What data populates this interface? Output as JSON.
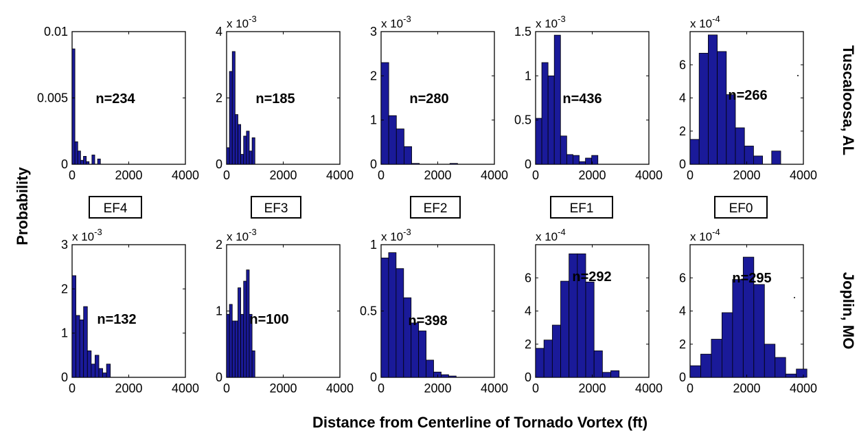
{
  "figure": {
    "ylabel": "Probability",
    "xlabel": "Distance from Centerline of Tornado Vortex (ft)",
    "row_labels": [
      "Tuscaloosa, AL",
      "Joplin, MO"
    ],
    "ef_labels": [
      "EF4",
      "EF3",
      "EF2",
      "EF1",
      "EF0"
    ],
    "bar_color": "#1a1a99",
    "bar_edge": "#000000"
  },
  "chart_data": [
    {
      "type": "bar",
      "row": 0,
      "col": 0,
      "annotation": "n=234",
      "scale_prefix": "",
      "scale_exp": "",
      "xlim": [
        0,
        4000
      ],
      "ylim": [
        0,
        0.01
      ],
      "yticks": [
        0,
        0.005,
        0.01
      ],
      "ytick_labels": [
        "0",
        "0.005",
        "0.01"
      ],
      "xticks": [
        0,
        2000,
        4000
      ],
      "xtick_labels": [
        "0",
        "2000",
        "4000"
      ],
      "bin_width": 100,
      "bin_start": 0,
      "values": [
        0.0087,
        0.0017,
        0.001,
        0.0003,
        0.0006,
        0.0002,
        0,
        0.0007,
        0,
        0.0004
      ]
    },
    {
      "type": "bar",
      "row": 0,
      "col": 1,
      "annotation": "n=185",
      "scale_prefix": "x 10",
      "scale_exp": "-3",
      "xlim": [
        0,
        4000
      ],
      "ylim": [
        0,
        4
      ],
      "yticks": [
        0,
        2,
        4
      ],
      "ytick_labels": [
        "0",
        "2",
        "4"
      ],
      "xticks": [
        0,
        2000,
        4000
      ],
      "xtick_labels": [
        "0",
        "2000",
        "4000"
      ],
      "bin_width": 100,
      "bin_start": 0,
      "values": [
        0.5,
        2.8,
        3.4,
        1.5,
        1.2,
        0.3,
        0.85,
        1.0,
        0.4,
        0.8
      ]
    },
    {
      "type": "bar",
      "row": 0,
      "col": 2,
      "annotation": "n=280",
      "scale_prefix": "x 10",
      "scale_exp": "-3",
      "xlim": [
        0,
        4000
      ],
      "ylim": [
        0,
        3
      ],
      "yticks": [
        0,
        1,
        2,
        3
      ],
      "ytick_labels": [
        "0",
        "1",
        "2",
        "3"
      ],
      "xticks": [
        0,
        2000,
        4000
      ],
      "xtick_labels": [
        "0",
        "2000",
        "4000"
      ],
      "bin_width": 270,
      "bin_start": 0,
      "values": [
        2.3,
        1.1,
        0.8,
        0.4,
        0.02,
        0,
        0,
        0,
        0,
        0.02
      ]
    },
    {
      "type": "bar",
      "row": 0,
      "col": 3,
      "annotation": "n=436",
      "scale_prefix": "x 10",
      "scale_exp": "-3",
      "xlim": [
        0,
        4000
      ],
      "ylim": [
        0,
        1.5
      ],
      "yticks": [
        0,
        0.5,
        1,
        1.5
      ],
      "ytick_labels": [
        "0",
        "0.5",
        "1",
        "1.5"
      ],
      "xticks": [
        0,
        2000,
        4000
      ],
      "xtick_labels": [
        "0",
        "2000",
        "4000"
      ],
      "bin_width": 220,
      "bin_start": 0,
      "values": [
        0.52,
        1.15,
        1.0,
        1.46,
        0.32,
        0.11,
        0.1,
        0.03,
        0.07,
        0.1
      ]
    },
    {
      "type": "bar",
      "row": 0,
      "col": 4,
      "annotation": "n=266",
      "scale_prefix": "x 10",
      "scale_exp": "-4",
      "xlim": [
        0,
        4000
      ],
      "ylim": [
        0,
        8
      ],
      "yticks": [
        0,
        2,
        4,
        6
      ],
      "ytick_labels": [
        "0",
        "2",
        "4",
        "6"
      ],
      "xticks": [
        0,
        2000,
        4000
      ],
      "xtick_labels": [
        "0",
        "2000",
        "4000"
      ],
      "bin_width": 320,
      "bin_start": 0,
      "values": [
        1.5,
        6.7,
        7.8,
        6.8,
        4.2,
        2.2,
        1.1,
        0.5,
        0,
        0.8
      ]
    },
    {
      "type": "bar",
      "row": 1,
      "col": 0,
      "annotation": "n=132",
      "scale_prefix": "x 10",
      "scale_exp": "-3",
      "xlim": [
        0,
        4000
      ],
      "ylim": [
        0,
        3
      ],
      "yticks": [
        0,
        1,
        2,
        3
      ],
      "ytick_labels": [
        "0",
        "1",
        "2",
        "3"
      ],
      "xticks": [
        0,
        2000,
        4000
      ],
      "xtick_labels": [
        "0",
        "2000",
        "4000"
      ],
      "bin_width": 135,
      "bin_start": 0,
      "values": [
        2.3,
        1.4,
        1.3,
        1.6,
        0.6,
        0.3,
        0.5,
        0.2,
        0.1,
        0.3
      ]
    },
    {
      "type": "bar",
      "row": 1,
      "col": 1,
      "annotation": "n=100",
      "scale_prefix": "x 10",
      "scale_exp": "-3",
      "xlim": [
        0,
        4000
      ],
      "ylim": [
        0,
        2
      ],
      "yticks": [
        0,
        1,
        2
      ],
      "ytick_labels": [
        "0",
        "1",
        "2"
      ],
      "xticks": [
        0,
        2000,
        4000
      ],
      "xtick_labels": [
        "0",
        "2000",
        "4000"
      ],
      "bin_width": 100,
      "bin_start": 0,
      "values": [
        0.95,
        1.1,
        0.85,
        0.85,
        1.35,
        0.95,
        1.45,
        1.62,
        0.95,
        0.4
      ]
    },
    {
      "type": "bar",
      "row": 1,
      "col": 2,
      "annotation": "n=398",
      "scale_prefix": "x 10",
      "scale_exp": "-3",
      "xlim": [
        0,
        4000
      ],
      "ylim": [
        0,
        1
      ],
      "yticks": [
        0,
        0.5,
        1
      ],
      "ytick_labels": [
        "0",
        "0.5",
        "1"
      ],
      "xticks": [
        0,
        2000,
        4000
      ],
      "xtick_labels": [
        "0",
        "2000",
        "4000"
      ],
      "bin_width": 265,
      "bin_start": 0,
      "values": [
        0.9,
        0.94,
        0.82,
        0.6,
        0.41,
        0.35,
        0.13,
        0.04,
        0.02,
        0.01
      ]
    },
    {
      "type": "bar",
      "row": 1,
      "col": 3,
      "annotation": "n=292",
      "scale_prefix": "x 10",
      "scale_exp": "-4",
      "xlim": [
        0,
        4000
      ],
      "ylim": [
        0,
        8
      ],
      "yticks": [
        0,
        2,
        4,
        6
      ],
      "ytick_labels": [
        "0",
        "2",
        "4",
        "6"
      ],
      "xticks": [
        0,
        2000,
        4000
      ],
      "xtick_labels": [
        "0",
        "2000",
        "4000"
      ],
      "bin_width": 295,
      "bin_start": 0,
      "values": [
        1.75,
        2.25,
        3.15,
        5.8,
        7.45,
        7.45,
        5.75,
        1.6,
        0.3,
        0.4
      ]
    },
    {
      "type": "bar",
      "row": 1,
      "col": 4,
      "annotation": "n=295",
      "scale_prefix": "x 10",
      "scale_exp": "-4",
      "xlim": [
        0,
        4000
      ],
      "ylim": [
        0,
        8
      ],
      "yticks": [
        0,
        2,
        4,
        6
      ],
      "ytick_labels": [
        "0",
        "2",
        "4",
        "6"
      ],
      "xticks": [
        0,
        2000,
        4000
      ],
      "xtick_labels": [
        "0",
        "2000",
        "4000"
      ],
      "bin_width": 375,
      "bin_start": 0,
      "values": [
        0.7,
        1.4,
        2.3,
        3.9,
        5.9,
        7.25,
        5.6,
        2.0,
        1.2,
        0.2,
        0.5
      ]
    }
  ]
}
